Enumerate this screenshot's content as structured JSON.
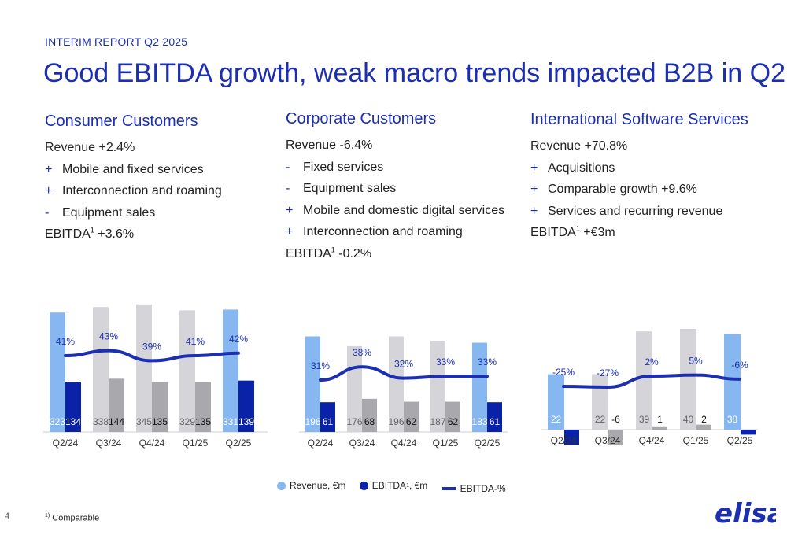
{
  "header": {
    "tag": "INTERIM REPORT Q2 2025",
    "title": "Good EBITDA growth, weak macro trends impacted B2B in Q2"
  },
  "columns": [
    {
      "heading": "Consumer Customers",
      "lines": [
        {
          "bullet": "",
          "text": "Revenue +2.4%"
        },
        {
          "bullet": "+",
          "text": "Mobile and fixed services"
        },
        {
          "bullet": "+",
          "text": "Interconnection and roaming"
        },
        {
          "bullet": "-",
          "text": "Equipment sales"
        }
      ],
      "ebitda_prefix": "EBITDA",
      "ebitda_sup": "1",
      "ebitda_value": " +3.6%"
    },
    {
      "heading": "Corporate Customers",
      "lines": [
        {
          "bullet": "",
          "text": "Revenue -6.4%"
        },
        {
          "bullet": "-",
          "text": "Fixed services"
        },
        {
          "bullet": "-",
          "text": "Equipment sales"
        },
        {
          "bullet": "+",
          "text": "Mobile and domestic digital services"
        },
        {
          "bullet": "+",
          "text": "Interconnection and roaming"
        }
      ],
      "ebitda_prefix": "EBITDA",
      "ebitda_sup": "1",
      "ebitda_value": " -0.2%"
    },
    {
      "heading": "International Software Services",
      "lines": [
        {
          "bullet": "",
          "text": "Revenue +70.8%"
        },
        {
          "bullet": "+",
          "text": "Acquisitions"
        },
        {
          "bullet": "+",
          "text": "Comparable growth +9.6%"
        },
        {
          "bullet": "+",
          "text": "Services and recurring revenue"
        }
      ],
      "ebitda_prefix": "EBITDA",
      "ebitda_sup": "1",
      "ebitda_value": " +€3m"
    }
  ],
  "colors": {
    "brand_blue": "#1c2fb0",
    "revenue_highlight": "#86b7f0",
    "revenue_grey": "#d5d5d9",
    "ebitda_bar": "#0a22a8",
    "ebitda_grey": "#a8a8ad",
    "line": "#1c2fb0"
  },
  "chart_data": [
    {
      "type": "bar",
      "name": "Consumer Customers",
      "categories": [
        "Q2/24",
        "Q3/24",
        "Q4/24",
        "Q1/25",
        "Q2/25"
      ],
      "highlight": [
        true,
        false,
        false,
        false,
        true
      ],
      "series": [
        {
          "name": "Revenue, €m",
          "values": [
            323,
            338,
            345,
            329,
            331
          ]
        },
        {
          "name": "EBITDA, €m",
          "values": [
            134,
            144,
            135,
            135,
            139
          ]
        },
        {
          "name": "EBITDA-%",
          "values": [
            41,
            43,
            39,
            41,
            42
          ]
        }
      ],
      "pct_labels": [
        "41%",
        "43%",
        "39%",
        "41%",
        "42%"
      ]
    },
    {
      "type": "bar",
      "name": "Corporate Customers",
      "categories": [
        "Q2/24",
        "Q3/24",
        "Q4/24",
        "Q1/25",
        "Q2/25"
      ],
      "highlight": [
        true,
        false,
        false,
        false,
        true
      ],
      "series": [
        {
          "name": "Revenue, €m",
          "values": [
            196,
            176,
            196,
            187,
            183
          ]
        },
        {
          "name": "EBITDA, €m",
          "values": [
            61,
            68,
            62,
            62,
            61
          ]
        },
        {
          "name": "EBITDA-%",
          "values": [
            31,
            38,
            32,
            33,
            33
          ]
        }
      ],
      "pct_labels": [
        "31%",
        "38%",
        "32%",
        "33%",
        "33%"
      ]
    },
    {
      "type": "bar",
      "name": "International Software Services",
      "categories": [
        "Q2/24",
        "Q3/24",
        "Q4/24",
        "Q1/25",
        "Q2/25"
      ],
      "highlight": [
        true,
        false,
        false,
        false,
        true
      ],
      "series": [
        {
          "name": "Revenue, €m",
          "values": [
            22,
            22,
            39,
            40,
            38
          ]
        },
        {
          "name": "EBITDA, €m",
          "values": [
            -6,
            -6,
            1,
            2,
            -2
          ]
        },
        {
          "name": "EBITDA-%",
          "values": [
            -25,
            -27,
            2,
            5,
            -6
          ]
        }
      ],
      "pct_labels": [
        "-25%",
        "-27%",
        "2%",
        "5%",
        "-6%"
      ]
    }
  ],
  "legend": {
    "revenue": "Revenue, €m",
    "ebitda_prefix": "EBITDA",
    "ebitda_sup": "1",
    "ebitda_suffix": ", €m",
    "ebitda_pct": "EBITDA-%"
  },
  "footer": {
    "page_number": "4",
    "note_sup": "1)",
    "note_text": " Comparable"
  },
  "logo": {
    "text": "elisa",
    "icon": "elisa-logo"
  }
}
